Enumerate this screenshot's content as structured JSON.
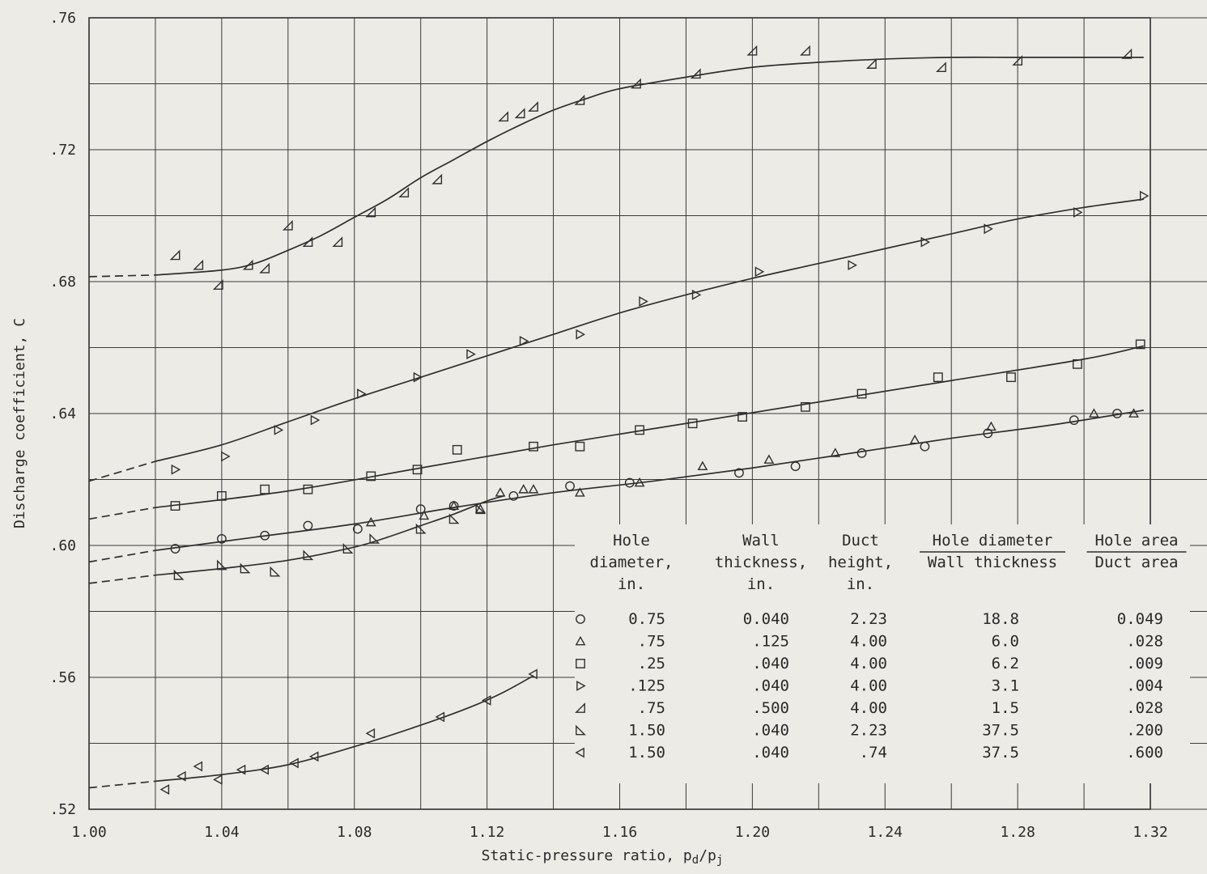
{
  "chart_data": {
    "type": "scatter",
    "xlabel": "Static-pressure ratio, p",
    "xlabel_sub1": "d",
    "xlabel_slash": "/p",
    "xlabel_sub2": "j",
    "ylabel": "Discharge coefficient, C",
    "xlim": [
      1.0,
      1.32
    ],
    "ylim": [
      0.52,
      0.76
    ],
    "xticks": [
      "1.00",
      "1.04",
      "1.08",
      "1.12",
      "1.16",
      "1.20",
      "1.24",
      "1.28",
      "1.32"
    ],
    "yticks": [
      ".52",
      ".56",
      ".60",
      ".64",
      ".68",
      ".72",
      ".76"
    ],
    "grid": true,
    "legend_position": "bottom-right",
    "legend_columns": [
      [
        "Hole",
        "diameter,",
        "in."
      ],
      [
        "Wall",
        "thickness,",
        "in."
      ],
      [
        "Duct",
        "height,",
        "in."
      ],
      [
        "Hole diameter",
        "Wall thickness"
      ],
      [
        "Hole area",
        "Duct area"
      ]
    ],
    "series": [
      {
        "symbol": "circle",
        "values_text": [
          "0.75",
          "0.040",
          "2.23",
          "18.8",
          "0.049"
        ],
        "points": [
          [
            1.026,
            0.599
          ],
          [
            1.04,
            0.602
          ],
          [
            1.053,
            0.603
          ],
          [
            1.066,
            0.606
          ],
          [
            1.081,
            0.605
          ],
          [
            1.1,
            0.611
          ],
          [
            1.11,
            0.612
          ],
          [
            1.128,
            0.615
          ],
          [
            1.145,
            0.618
          ],
          [
            1.163,
            0.619
          ],
          [
            1.196,
            0.622
          ],
          [
            1.213,
            0.624
          ],
          [
            1.233,
            0.628
          ],
          [
            1.252,
            0.63
          ],
          [
            1.271,
            0.634
          ],
          [
            1.297,
            0.638
          ],
          [
            1.31,
            0.64
          ]
        ],
        "fit": [
          [
            1.02,
            0.5985
          ],
          [
            1.05,
            0.6025
          ],
          [
            1.08,
            0.6065
          ],
          [
            1.11,
            0.6115
          ],
          [
            1.14,
            0.616
          ],
          [
            1.17,
            0.6195
          ],
          [
            1.2,
            0.6235
          ],
          [
            1.23,
            0.628
          ],
          [
            1.26,
            0.6325
          ],
          [
            1.29,
            0.6365
          ],
          [
            1.318,
            0.641
          ]
        ],
        "extrapolation": [
          [
            1.0,
            0.595
          ],
          [
            1.02,
            0.5985
          ]
        ]
      },
      {
        "symbol": "triangle-up",
        "values_text": [
          ".75",
          ".125",
          "4.00",
          "6.0",
          ".028"
        ],
        "points": [
          [
            1.085,
            0.607
          ],
          [
            1.101,
            0.609
          ],
          [
            1.11,
            0.612
          ],
          [
            1.118,
            0.611
          ],
          [
            1.124,
            0.616
          ],
          [
            1.131,
            0.617
          ],
          [
            1.134,
            0.617
          ],
          [
            1.148,
            0.616
          ],
          [
            1.166,
            0.619
          ],
          [
            1.185,
            0.624
          ],
          [
            1.205,
            0.626
          ],
          [
            1.225,
            0.628
          ],
          [
            1.249,
            0.632
          ],
          [
            1.272,
            0.636
          ],
          [
            1.303,
            0.64
          ],
          [
            1.315,
            0.64
          ]
        ]
      },
      {
        "symbol": "square",
        "values_text": [
          ".25",
          ".040",
          "4.00",
          "6.2",
          ".009"
        ],
        "points": [
          [
            1.026,
            0.612
          ],
          [
            1.04,
            0.615
          ],
          [
            1.053,
            0.617
          ],
          [
            1.066,
            0.617
          ],
          [
            1.085,
            0.621
          ],
          [
            1.099,
            0.623
          ],
          [
            1.111,
            0.629
          ],
          [
            1.134,
            0.63
          ],
          [
            1.148,
            0.63
          ],
          [
            1.166,
            0.635
          ],
          [
            1.182,
            0.637
          ],
          [
            1.197,
            0.639
          ],
          [
            1.216,
            0.642
          ],
          [
            1.233,
            0.646
          ],
          [
            1.256,
            0.651
          ],
          [
            1.278,
            0.651
          ],
          [
            1.298,
            0.655
          ],
          [
            1.317,
            0.661
          ]
        ],
        "fit": [
          [
            1.02,
            0.6115
          ],
          [
            1.06,
            0.6165
          ],
          [
            1.1,
            0.6235
          ],
          [
            1.14,
            0.6305
          ],
          [
            1.18,
            0.637
          ],
          [
            1.22,
            0.6435
          ],
          [
            1.26,
            0.65
          ],
          [
            1.3,
            0.6565
          ],
          [
            1.318,
            0.6605
          ]
        ],
        "extrapolation": [
          [
            1.0,
            0.608
          ],
          [
            1.02,
            0.6115
          ]
        ]
      },
      {
        "symbol": "triangle-right",
        "values_text": [
          ".125",
          ".040",
          "4.00",
          "3.1",
          ".004"
        ],
        "points": [
          [
            1.026,
            0.623
          ],
          [
            1.041,
            0.627
          ],
          [
            1.057,
            0.635
          ],
          [
            1.068,
            0.638
          ],
          [
            1.082,
            0.646
          ],
          [
            1.099,
            0.651
          ],
          [
            1.115,
            0.658
          ],
          [
            1.131,
            0.662
          ],
          [
            1.148,
            0.664
          ],
          [
            1.167,
            0.674
          ],
          [
            1.183,
            0.676
          ],
          [
            1.202,
            0.683
          ],
          [
            1.23,
            0.685
          ],
          [
            1.252,
            0.692
          ],
          [
            1.271,
            0.696
          ],
          [
            1.298,
            0.701
          ],
          [
            1.318,
            0.706
          ]
        ],
        "fit": [
          [
            1.02,
            0.6255
          ],
          [
            1.04,
            0.6305
          ],
          [
            1.06,
            0.6375
          ],
          [
            1.08,
            0.6445
          ],
          [
            1.1,
            0.651
          ],
          [
            1.12,
            0.6575
          ],
          [
            1.14,
            0.664
          ],
          [
            1.16,
            0.6705
          ],
          [
            1.18,
            0.676
          ],
          [
            1.2,
            0.681
          ],
          [
            1.22,
            0.6855
          ],
          [
            1.24,
            0.69
          ],
          [
            1.26,
            0.6945
          ],
          [
            1.28,
            0.699
          ],
          [
            1.3,
            0.7025
          ],
          [
            1.318,
            0.705
          ]
        ],
        "extrapolation": [
          [
            1.0,
            0.6195
          ],
          [
            1.02,
            0.6255
          ]
        ]
      },
      {
        "symbol": "triangle-flag",
        "values_text": [
          ".75",
          ".500",
          "4.00",
          "1.5",
          ".028"
        ],
        "points": [
          [
            1.026,
            0.688
          ],
          [
            1.033,
            0.685
          ],
          [
            1.039,
            0.679
          ],
          [
            1.048,
            0.685
          ],
          [
            1.053,
            0.684
          ],
          [
            1.06,
            0.697
          ],
          [
            1.066,
            0.692
          ],
          [
            1.075,
            0.692
          ],
          [
            1.085,
            0.701
          ],
          [
            1.095,
            0.707
          ],
          [
            1.105,
            0.711
          ],
          [
            1.125,
            0.73
          ],
          [
            1.13,
            0.731
          ],
          [
            1.134,
            0.733
          ],
          [
            1.148,
            0.735
          ],
          [
            1.165,
            0.74
          ],
          [
            1.183,
            0.743
          ],
          [
            1.2,
            0.75
          ],
          [
            1.216,
            0.75
          ],
          [
            1.236,
            0.746
          ],
          [
            1.257,
            0.745
          ],
          [
            1.28,
            0.747
          ],
          [
            1.313,
            0.749
          ]
        ],
        "fit": [
          [
            1.02,
            0.682
          ],
          [
            1.04,
            0.6835
          ],
          [
            1.05,
            0.6855
          ],
          [
            1.06,
            0.6895
          ],
          [
            1.07,
            0.694
          ],
          [
            1.08,
            0.6995
          ],
          [
            1.09,
            0.705
          ],
          [
            1.1,
            0.7115
          ],
          [
            1.11,
            0.717
          ],
          [
            1.12,
            0.7225
          ],
          [
            1.13,
            0.7275
          ],
          [
            1.14,
            0.732
          ],
          [
            1.15,
            0.7355
          ],
          [
            1.16,
            0.7385
          ],
          [
            1.18,
            0.742
          ],
          [
            1.2,
            0.745
          ],
          [
            1.22,
            0.7465
          ],
          [
            1.24,
            0.7475
          ],
          [
            1.26,
            0.748
          ],
          [
            1.28,
            0.748
          ],
          [
            1.3,
            0.748
          ],
          [
            1.318,
            0.748
          ]
        ],
        "extrapolation": [
          [
            1.0,
            0.6815
          ],
          [
            1.02,
            0.682
          ]
        ]
      },
      {
        "symbol": "triangle-right-bottom",
        "values_text": [
          "1.50",
          ".040",
          "2.23",
          "37.5",
          ".200"
        ],
        "points": [
          [
            1.027,
            0.591
          ],
          [
            1.04,
            0.594
          ],
          [
            1.047,
            0.593
          ],
          [
            1.056,
            0.592
          ],
          [
            1.066,
            0.597
          ],
          [
            1.078,
            0.599
          ],
          [
            1.086,
            0.602
          ],
          [
            1.1,
            0.605
          ],
          [
            1.11,
            0.608
          ],
          [
            1.118,
            0.611
          ]
        ],
        "fit": [
          [
            1.02,
            0.591
          ],
          [
            1.04,
            0.593
          ],
          [
            1.06,
            0.5955
          ],
          [
            1.08,
            0.5995
          ],
          [
            1.09,
            0.6025
          ],
          [
            1.1,
            0.606
          ],
          [
            1.11,
            0.6095
          ],
          [
            1.12,
            0.6135
          ],
          [
            1.125,
            0.615
          ]
        ],
        "extrapolation": [
          [
            1.0,
            0.5885
          ],
          [
            1.02,
            0.591
          ]
        ]
      },
      {
        "symbol": "triangle-left",
        "values_text": [
          "1.50",
          ".040",
          ".74",
          "37.5",
          ".600"
        ],
        "points": [
          [
            1.023,
            0.526
          ],
          [
            1.028,
            0.53
          ],
          [
            1.033,
            0.533
          ],
          [
            1.039,
            0.529
          ],
          [
            1.046,
            0.532
          ],
          [
            1.053,
            0.532
          ],
          [
            1.062,
            0.534
          ],
          [
            1.068,
            0.536
          ],
          [
            1.085,
            0.543
          ],
          [
            1.106,
            0.548
          ],
          [
            1.12,
            0.553
          ],
          [
            1.134,
            0.561
          ]
        ],
        "fit": [
          [
            1.02,
            0.5285
          ],
          [
            1.04,
            0.5305
          ],
          [
            1.06,
            0.5335
          ],
          [
            1.08,
            0.539
          ],
          [
            1.1,
            0.5455
          ],
          [
            1.115,
            0.551
          ],
          [
            1.125,
            0.5555
          ],
          [
            1.134,
            0.5605
          ]
        ],
        "extrapolation": [
          [
            1.0,
            0.5265
          ],
          [
            1.02,
            0.5285
          ]
        ]
      }
    ]
  }
}
